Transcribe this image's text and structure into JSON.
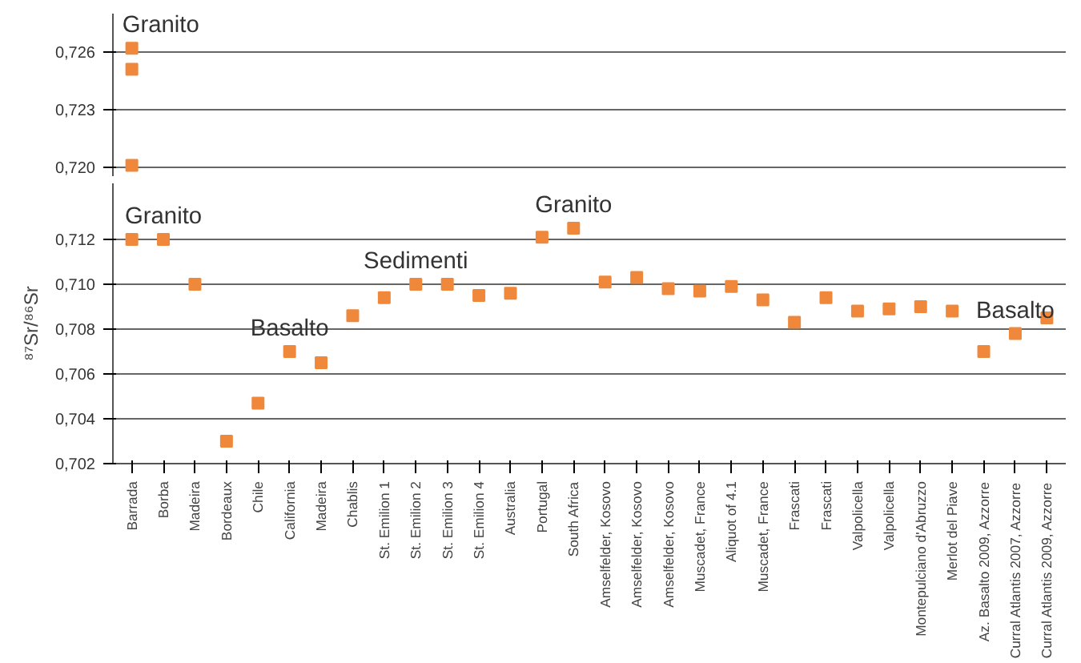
{
  "chart_data": [
    {
      "type": "scatter",
      "categories": [
        "Barrada",
        "Borba",
        "Madeira",
        "Bordeaux",
        "Chile",
        "California",
        "Madeira",
        "Chablis",
        "St. Emilion 1",
        "St. Emilion 2",
        "St. Emilion 3",
        "St. Emilion 4",
        "Australia",
        "Portugal",
        "South Africa",
        "Amselfelder, Kosovo",
        "Amselfelder, Kosovo",
        "Amselfelder, Kosovo",
        "Muscadet, France",
        "Aliquot of 4.1",
        "Muscadet, France",
        "Frascati",
        "Frascati",
        "Valpolicella",
        "Valpolicella",
        "Montepulciano d'Abruzzo",
        "Merlot del Piave",
        "Az. Basalto 2009, Azzorre",
        "Curral Atlantis 2007, Azzorre",
        "Curral Atlantis 2009, Azzorre"
      ],
      "series": [
        {
          "color": "#f0883c",
          "x": [
            "Barrada",
            "Barrada",
            "Barrada"
          ],
          "values": [
            0.7262,
            0.7251,
            0.7201
          ]
        }
      ],
      "ylim": [
        0.7195,
        0.728
      ],
      "yticks": [
        {
          "value": 0.72,
          "label": "0,720"
        },
        {
          "value": 0.723,
          "label": "0,723"
        },
        {
          "value": 0.726,
          "label": "0,726"
        }
      ],
      "tick_labels": "y",
      "grid": "y",
      "marker": "square",
      "annotations": [
        {
          "text": "Granito",
          "x": "Barrada",
          "y": 0.7262
        }
      ]
    },
    {
      "type": "scatter",
      "categories": [
        "Barrada",
        "Borba",
        "Madeira",
        "Bordeaux",
        "Chile",
        "California",
        "Madeira",
        "Chablis",
        "St. Emilion 1",
        "St. Emilion 2",
        "St. Emilion 3",
        "St. Emilion 4",
        "Australia",
        "Portugal",
        "South Africa",
        "Amselfelder, Kosovo",
        "Amselfelder, Kosovo",
        "Amselfelder, Kosovo",
        "Muscadet, France",
        "Aliquot of 4.1",
        "Muscadet, France",
        "Frascati",
        "Frascati",
        "Valpolicella",
        "Valpolicella",
        "Montepulciano d'Abruzzo",
        "Merlot del Piave",
        "Az. Basalto 2009, Azzorre",
        "Curral Atlantis 2007, Azzorre",
        "Curral Atlantis 2009, Azzorre"
      ],
      "series": [
        {
          "color": "#f0883c",
          "values": [
            0.712,
            0.712,
            0.71,
            0.703,
            0.7047,
            0.707,
            0.7065,
            0.7086,
            0.7094,
            0.71,
            0.71,
            0.7095,
            0.7096,
            0.7121,
            0.7125,
            0.7101,
            0.7103,
            0.7098,
            0.7097,
            0.7099,
            0.7093,
            0.7083,
            0.7094,
            0.7088,
            0.7089,
            0.709,
            0.7088,
            0.707,
            0.7078,
            0.7085
          ]
        }
      ],
      "ylim": [
        0.702,
        0.7145
      ],
      "yticks": [
        {
          "value": 0.702,
          "label": "0,702"
        },
        {
          "value": 0.704,
          "label": "0,704"
        },
        {
          "value": 0.706,
          "label": "0,706"
        },
        {
          "value": 0.708,
          "label": "0,708"
        },
        {
          "value": 0.71,
          "label": "0,710"
        },
        {
          "value": 0.712,
          "label": "0,712"
        }
      ],
      "ylabel": "⁸⁷Sr/⁸⁶Sr",
      "grid": "y",
      "marker": "square",
      "annotations": [
        {
          "text": "Granito",
          "x": "Borba",
          "y": 0.712
        },
        {
          "text": "Basalto",
          "x": "California",
          "y": 0.707
        },
        {
          "text": "Sedimenti",
          "x": "St. Emilion 2",
          "y": 0.71
        },
        {
          "text": "Granito",
          "x": "South Africa",
          "y": 0.7125
        },
        {
          "text": "Basalto",
          "x": "Curral Atlantis 2007, Azzorre",
          "y": 0.7078
        }
      ]
    }
  ]
}
